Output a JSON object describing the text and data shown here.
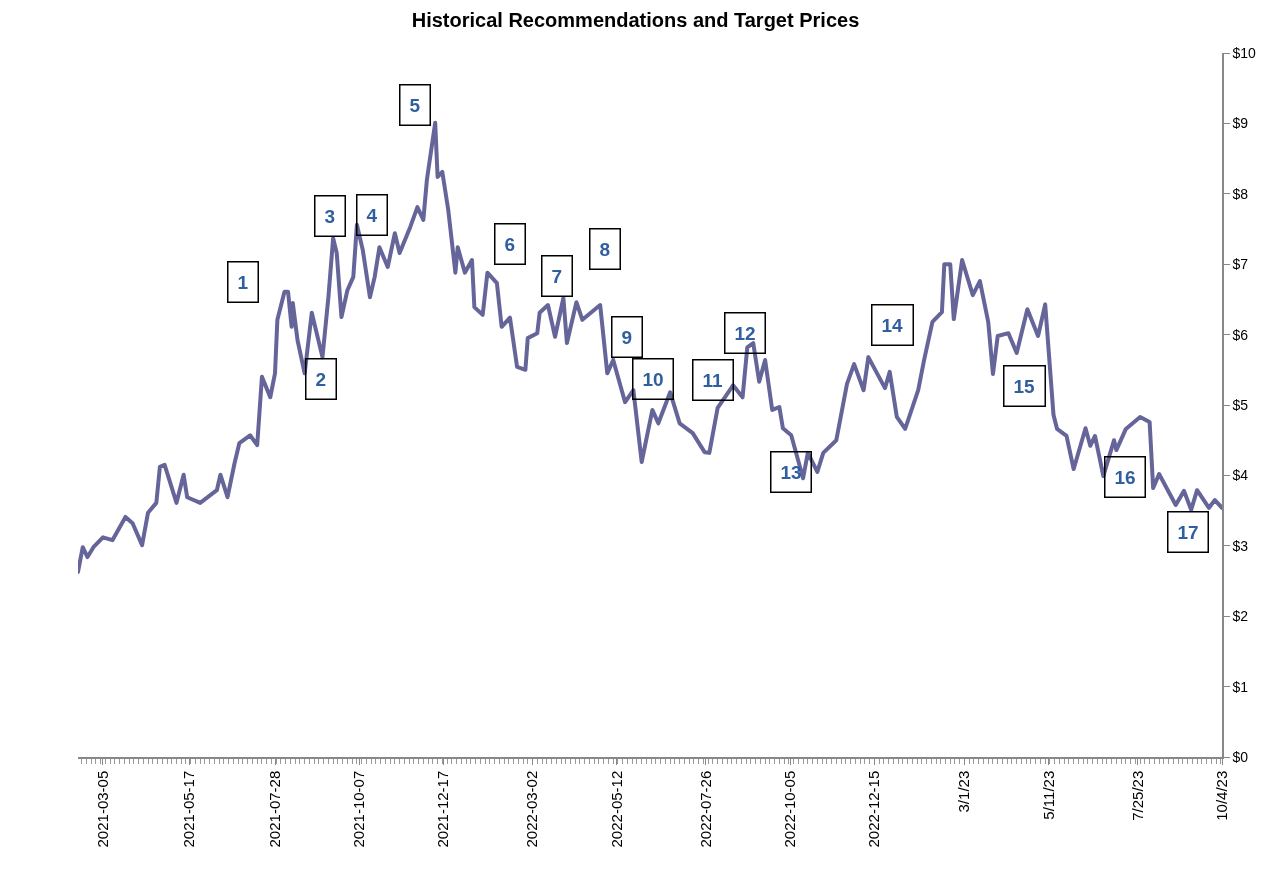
{
  "chart_data": {
    "type": "line",
    "title": "Historical Recommendations and Target Prices",
    "x": [
      "2021-02-12",
      "2021-02-16",
      "2021-02-20",
      "2021-02-25",
      "2021-03-05",
      "2021-03-13",
      "2021-03-24",
      "2021-03-30",
      "2021-04-07",
      "2021-04-12",
      "2021-04-19",
      "2021-04-22",
      "2021-04-26",
      "2021-05-06",
      "2021-05-12",
      "2021-05-15",
      "2021-05-26",
      "2021-06-09",
      "2021-06-12",
      "2021-06-18",
      "2021-06-24",
      "2021-06-28",
      "2021-07-07",
      "2021-07-13",
      "2021-07-17",
      "2021-07-24",
      "2021-07-28",
      "2021-07-30",
      "2021-08-05",
      "2021-08-08",
      "2021-08-11",
      "2021-08-12",
      "2021-08-16",
      "2021-08-22",
      "2021-08-28",
      "2021-09-06",
      "2021-09-11",
      "2021-09-15",
      "2021-09-18",
      "2021-09-22",
      "2021-09-27",
      "2021-10-02",
      "2021-10-05",
      "2021-10-10",
      "2021-10-16",
      "2021-10-20",
      "2021-10-24",
      "2021-10-31",
      "2021-11-06",
      "2021-11-10",
      "2021-11-19",
      "2021-11-25",
      "2021-11-30",
      "2021-12-03",
      "2021-12-10",
      "2021-12-12",
      "2021-12-16",
      "2021-12-21",
      "2021-12-27",
      "2021-12-29",
      "2022-01-04",
      "2022-01-10",
      "2022-01-12",
      "2022-01-19",
      "2022-01-23",
      "2022-01-31",
      "2022-02-04",
      "2022-02-11",
      "2022-02-17",
      "2022-02-24",
      "2022-02-26",
      "2022-03-06",
      "2022-03-08",
      "2022-03-15",
      "2022-03-21",
      "2022-03-28",
      "2022-03-31",
      "2022-04-08",
      "2022-04-13",
      "2022-04-28",
      "2022-05-04",
      "2022-05-09",
      "2022-05-19",
      "2022-05-26",
      "2022-06-02",
      "2022-06-11",
      "2022-06-16",
      "2022-06-26",
      "2022-07-04",
      "2022-07-15",
      "2022-07-25",
      "2022-07-29",
      "2022-08-05",
      "2022-08-18",
      "2022-08-26",
      "2022-08-30",
      "2022-09-04",
      "2022-09-09",
      "2022-09-14",
      "2022-09-20",
      "2022-09-26",
      "2022-09-29",
      "2022-10-06",
      "2022-10-16",
      "2022-10-20",
      "2022-10-28",
      "2022-11-02",
      "2022-11-13",
      "2022-11-22",
      "2022-11-28",
      "2022-12-06",
      "2022-12-10",
      "2022-12-24",
      "2022-12-28",
      "2023-01-03",
      "2023-01-10",
      "2023-01-21",
      "2023-01-26",
      "2023-02-02",
      "2023-02-10",
      "2023-02-12",
      "2023-02-17",
      "2023-02-20",
      "2023-02-27",
      "2023-03-08",
      "2023-03-14",
      "2023-03-21",
      "2023-03-25",
      "2023-03-29",
      "2023-04-07",
      "2023-04-14",
      "2023-04-23",
      "2023-05-02",
      "2023-05-08",
      "2023-05-15",
      "2023-05-18",
      "2023-05-26",
      "2023-06-01",
      "2023-06-11",
      "2023-06-15",
      "2023-06-19",
      "2023-06-26",
      "2023-07-05",
      "2023-07-07",
      "2023-07-15",
      "2023-07-27",
      "2023-08-04",
      "2023-08-07",
      "2023-08-12",
      "2023-08-26",
      "2023-09-02",
      "2023-09-08",
      "2023-09-13",
      "2023-09-23",
      "2023-09-28",
      "2023-10-04"
    ],
    "series": [
      {
        "color": "#65659a",
        "values": [
          2.63,
          2.98,
          2.84,
          2.98,
          3.12,
          3.08,
          3.41,
          3.32,
          3.01,
          3.47,
          3.61,
          4.12,
          4.15,
          3.61,
          4.01,
          3.69,
          3.61,
          3.79,
          4.01,
          3.69,
          4.18,
          4.46,
          4.57,
          4.43,
          5.4,
          5.11,
          5.45,
          6.21,
          6.61,
          6.61,
          6.11,
          6.45,
          5.92,
          5.45,
          6.31,
          5.68,
          6.53,
          7.37,
          7.16,
          6.25,
          6.63,
          6.82,
          7.56,
          7.2,
          6.53,
          6.82,
          7.24,
          6.96,
          7.44,
          7.16,
          7.53,
          7.81,
          7.63,
          8.2,
          9.01,
          8.24,
          8.31,
          7.77,
          6.88,
          7.24,
          6.88,
          7.06,
          6.39,
          6.28,
          6.88,
          6.73,
          6.11,
          6.24,
          5.54,
          5.5,
          5.95,
          6.02,
          6.31,
          6.42,
          5.97,
          6.52,
          5.88,
          6.46,
          6.21,
          6.42,
          5.45,
          5.64,
          5.04,
          5.21,
          4.19,
          4.93,
          4.74,
          5.18,
          4.74,
          4.6,
          4.33,
          4.32,
          4.96,
          5.28,
          5.11,
          5.82,
          5.88,
          5.33,
          5.64,
          4.93,
          4.97,
          4.67,
          4.57,
          3.96,
          4.32,
          4.05,
          4.32,
          4.5,
          5.3,
          5.58,
          5.21,
          5.68,
          5.24,
          5.47,
          4.83,
          4.66,
          5.21,
          5.64,
          6.18,
          6.32,
          7.0,
          7.0,
          6.22,
          7.06,
          6.56,
          6.76,
          6.18,
          5.44,
          5.98,
          6.02,
          5.74,
          6.36,
          5.98,
          6.43,
          4.86,
          4.66,
          4.56,
          4.09,
          4.67,
          4.42,
          4.56,
          3.99,
          4.5,
          4.36,
          4.66,
          4.83,
          4.76,
          3.82,
          4.02,
          3.58,
          3.78,
          3.51,
          3.79,
          3.54,
          3.65,
          3.54
        ]
      }
    ],
    "xlim": [
      "2021-02-12",
      "2023-10-04"
    ],
    "xticks": [
      {
        "value": "2021-03-05",
        "label": "2021-03-05"
      },
      {
        "value": "2021-05-17",
        "label": "2021-05-17"
      },
      {
        "value": "2021-07-28",
        "label": "2021-07-28"
      },
      {
        "value": "2021-10-07",
        "label": "2021-10-07"
      },
      {
        "value": "2021-12-17",
        "label": "2021-12-17"
      },
      {
        "value": "2022-03-02",
        "label": "2022-03-02"
      },
      {
        "value": "2022-05-12",
        "label": "2022-05-12"
      },
      {
        "value": "2022-07-26",
        "label": "2022-07-26"
      },
      {
        "value": "2022-10-05",
        "label": "2022-10-05"
      },
      {
        "value": "2022-12-15",
        "label": "2022-12-15"
      },
      {
        "value": "2023-03-01",
        "label": "3/1/23"
      },
      {
        "value": "2023-05-11",
        "label": "5/11/23"
      },
      {
        "value": "2023-07-25",
        "label": "7/25/23"
      },
      {
        "value": "2023-10-04",
        "label": "10/4/23"
      }
    ],
    "ylim": [
      0,
      10
    ],
    "yticks": [
      {
        "value": 0,
        "label": "$0"
      },
      {
        "value": 1,
        "label": "$1"
      },
      {
        "value": 2,
        "label": "$2"
      },
      {
        "value": 3,
        "label": "$3"
      },
      {
        "value": 4,
        "label": "$4"
      },
      {
        "value": 5,
        "label": "$5"
      },
      {
        "value": 6,
        "label": "$6"
      },
      {
        "value": 7,
        "label": "$7"
      },
      {
        "value": 8,
        "label": "$8"
      },
      {
        "value": 9,
        "label": "$9"
      },
      {
        "value": 10,
        "label": "$10"
      }
    ],
    "grid": false,
    "marker": "none",
    "line_style": "solid",
    "annotations": [
      "1",
      "2",
      "3",
      "4",
      "5",
      "6",
      "7",
      "8",
      "9",
      "10",
      "11",
      "12",
      "13",
      "14",
      "15",
      "16",
      "17"
    ]
  }
}
